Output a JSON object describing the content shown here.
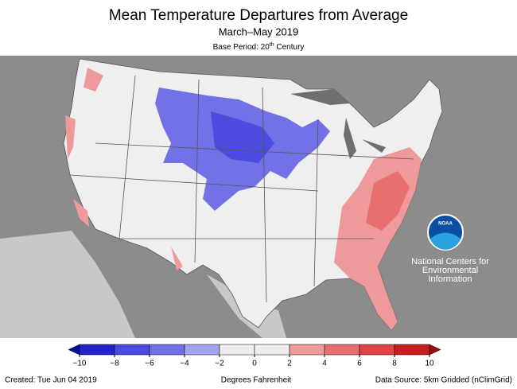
{
  "header": {
    "title": "Mean Temperature Departures from Average",
    "subtitle": "March–May 2019",
    "base_period": {
      "prefix": "Base Period: 20",
      "superscript": "th",
      "suffix": " Century"
    }
  },
  "logo": {
    "name": "NOAA",
    "lines": [
      "National Centers for",
      "Environmental",
      "Information"
    ]
  },
  "legend": {
    "label": "Degrees Fahrenheit",
    "ticks": [
      {
        "value": -10,
        "label": "−10"
      },
      {
        "value": -8,
        "label": "−8"
      },
      {
        "value": -6,
        "label": "−6"
      },
      {
        "value": -4,
        "label": "−4"
      },
      {
        "value": -2,
        "label": "−2"
      },
      0,
      2,
      4,
      6,
      8,
      10
    ],
    "colors": [
      "#2323c8",
      "#4b4bdf",
      "#7272e6",
      "#a3a3ef",
      "#eeeeee",
      "#eeeeee",
      "#ef9a9a",
      "#e76f6f",
      "#de4545",
      "#c61e1e"
    ],
    "under_color": "#0c0c9c",
    "over_color": "#9c0c0c"
  },
  "footer": {
    "created": "Created: Tue Jun 04 2019",
    "source": "Data Source: 5km Gridded (nClimGrid)"
  }
}
